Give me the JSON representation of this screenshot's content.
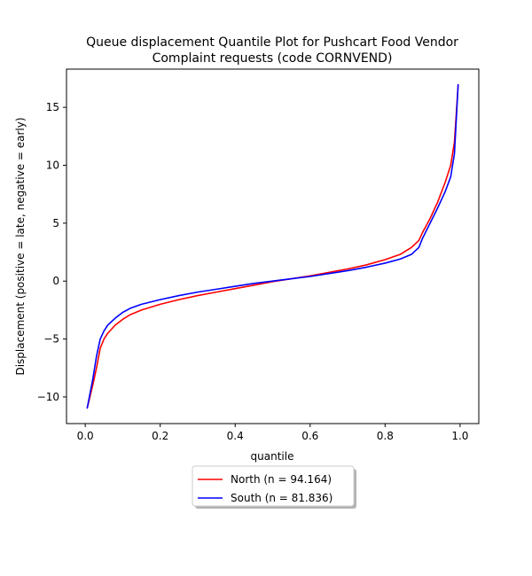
{
  "chart_data": {
    "type": "line",
    "title": "Queue displacement Quantile Plot for Pushcart Food Vendor\nComplaint  requests (code CORNVEND)",
    "xlabel": "quantile",
    "ylabel": "Displacement (positive = late, negative = early)",
    "xlim": [
      -0.05,
      1.05
    ],
    "ylim": [
      -12.3,
      18.3
    ],
    "xticks": [
      0.0,
      0.2,
      0.4,
      0.6,
      0.8,
      1.0
    ],
    "xtick_labels": [
      "0.0",
      "0.2",
      "0.4",
      "0.6",
      "0.8",
      "1.0"
    ],
    "yticks": [
      -10,
      -5,
      0,
      5,
      10,
      15
    ],
    "ytick_labels": [
      "−10",
      "−5",
      "0",
      "5",
      "10",
      "15"
    ],
    "grid": false,
    "legend_position": "below-center",
    "series": [
      {
        "name": "North (n = 94.164)",
        "color": "#ff0000",
        "x": [
          0.005,
          0.02,
          0.03,
          0.04,
          0.05,
          0.06,
          0.08,
          0.1,
          0.12,
          0.15,
          0.2,
          0.25,
          0.3,
          0.35,
          0.4,
          0.45,
          0.5,
          0.55,
          0.6,
          0.65,
          0.7,
          0.75,
          0.8,
          0.84,
          0.87,
          0.89,
          0.9,
          0.92,
          0.94,
          0.96,
          0.975,
          0.985,
          0.99,
          0.995
        ],
        "y": [
          -11.0,
          -9.0,
          -7.5,
          -5.8,
          -5.0,
          -4.5,
          -3.8,
          -3.3,
          -2.9,
          -2.5,
          -2.0,
          -1.6,
          -1.25,
          -0.95,
          -0.65,
          -0.35,
          -0.05,
          0.2,
          0.45,
          0.75,
          1.05,
          1.4,
          1.85,
          2.3,
          2.9,
          3.5,
          4.2,
          5.4,
          6.8,
          8.5,
          10.0,
          12.0,
          14.5,
          17.0
        ]
      },
      {
        "name": "South (n = 81.836)",
        "color": "#0000ff",
        "x": [
          0.005,
          0.02,
          0.03,
          0.04,
          0.05,
          0.06,
          0.08,
          0.1,
          0.12,
          0.15,
          0.2,
          0.25,
          0.3,
          0.35,
          0.4,
          0.45,
          0.5,
          0.55,
          0.6,
          0.65,
          0.7,
          0.75,
          0.8,
          0.84,
          0.87,
          0.89,
          0.9,
          0.92,
          0.94,
          0.96,
          0.975,
          0.985,
          0.99,
          0.995
        ],
        "y": [
          -11.0,
          -8.5,
          -6.5,
          -5.0,
          -4.3,
          -3.8,
          -3.2,
          -2.7,
          -2.35,
          -2.0,
          -1.6,
          -1.25,
          -0.95,
          -0.7,
          -0.45,
          -0.2,
          0.0,
          0.2,
          0.4,
          0.65,
          0.9,
          1.2,
          1.55,
          1.9,
          2.3,
          2.9,
          3.7,
          5.0,
          6.3,
          7.7,
          9.0,
          11.0,
          14.0,
          17.0
        ]
      }
    ]
  }
}
